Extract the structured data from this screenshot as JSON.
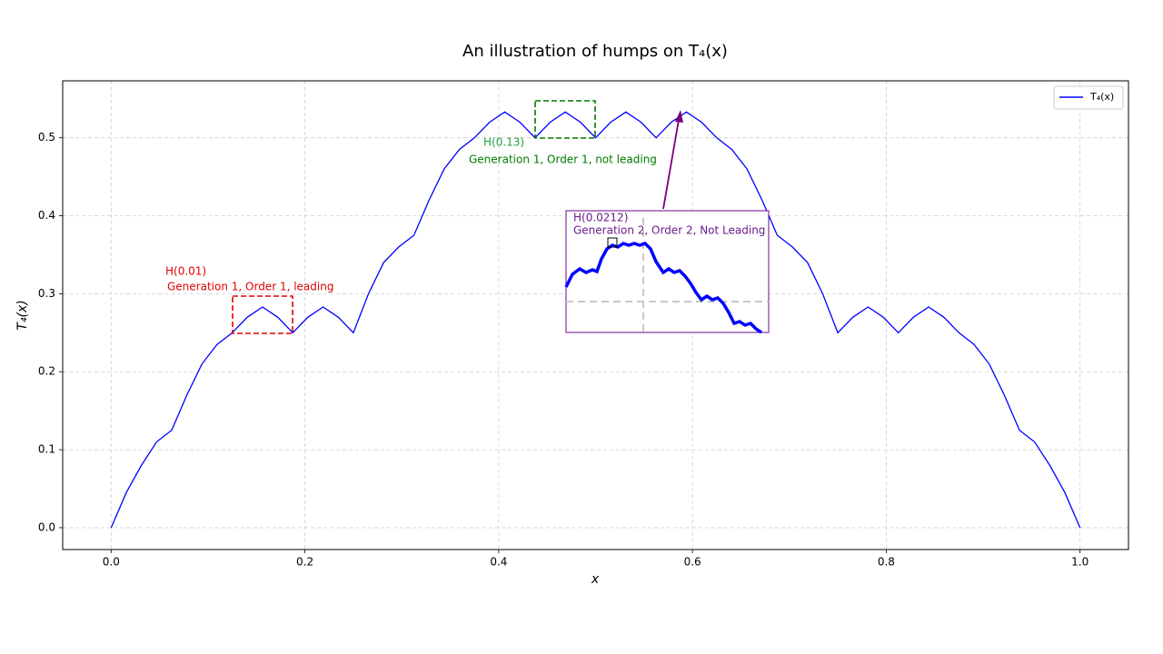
{
  "chart_data": {
    "type": "line",
    "title": "An illustration of humps on T₄(x)",
    "x_label": "x",
    "y_label": "T₄(x)",
    "x": [
      0,
      0.015625,
      0.03125,
      0.046875,
      0.0625,
      0.078125,
      0.09375,
      0.109375,
      0.125,
      0.140625,
      0.15625,
      0.171875,
      0.1875,
      0.203125,
      0.21875,
      0.234375,
      0.25,
      0.265625,
      0.28125,
      0.296875,
      0.3125,
      0.328125,
      0.34375,
      0.359375,
      0.375,
      0.390625,
      0.40625,
      0.421875,
      0.4375,
      0.453125,
      0.46875,
      0.484375,
      0.5,
      0.515625,
      0.53125,
      0.546875,
      0.5625,
      0.578125,
      0.59375,
      0.609375,
      0.625,
      0.640625,
      0.65625,
      0.671875,
      0.6875,
      0.703125,
      0.71875,
      0.734375,
      0.75,
      0.765625,
      0.78125,
      0.796875,
      0.8125,
      0.828125,
      0.84375,
      0.859375,
      0.875,
      0.890625,
      0.90625,
      0.921875,
      0.9375,
      0.953125,
      0.96875,
      0.984375,
      1
    ],
    "series": [
      {
        "name": "T₄(x)",
        "color": "#0000ff",
        "values": [
          0,
          0.045,
          0.08,
          0.11,
          0.125,
          0.17,
          0.21,
          0.235,
          0.25,
          0.27,
          0.283,
          0.27,
          0.25,
          0.27,
          0.283,
          0.27,
          0.25,
          0.3,
          0.34,
          0.36,
          0.375,
          0.42,
          0.46,
          0.485,
          0.5,
          0.52,
          0.533,
          0.52,
          0.5,
          0.52,
          0.533,
          0.52,
          0.5,
          0.52,
          0.533,
          0.52,
          0.5,
          0.52,
          0.533,
          0.52,
          0.5,
          0.485,
          0.46,
          0.42,
          0.375,
          0.36,
          0.34,
          0.3,
          0.25,
          0.27,
          0.283,
          0.27,
          0.25,
          0.27,
          0.283,
          0.27,
          0.25,
          0.235,
          0.21,
          0.17,
          0.125,
          0.11,
          0.08,
          0.045,
          0
        ]
      }
    ],
    "xlim": [
      -0.05,
      1.05
    ],
    "ylim": [
      -0.028,
      0.573
    ],
    "xticks": [
      {
        "value": 0,
        "label": "0.0"
      },
      0.2,
      0.4,
      0.6,
      0.8,
      {
        "value": 1,
        "label": "1.0"
      }
    ],
    "yticks": [
      {
        "value": 0,
        "label": "0.0"
      },
      0.1,
      0.2,
      0.3,
      0.4,
      0.5
    ],
    "grid": true,
    "legend": "upper right",
    "annotations": [
      "H(0.01)",
      "Generation 1, Order 1, leading",
      "H(0.13)",
      "Generation 1, Order 1, not leading",
      "H(0.0212)",
      "Generation 2, Order 2, Not Leading"
    ]
  }
}
